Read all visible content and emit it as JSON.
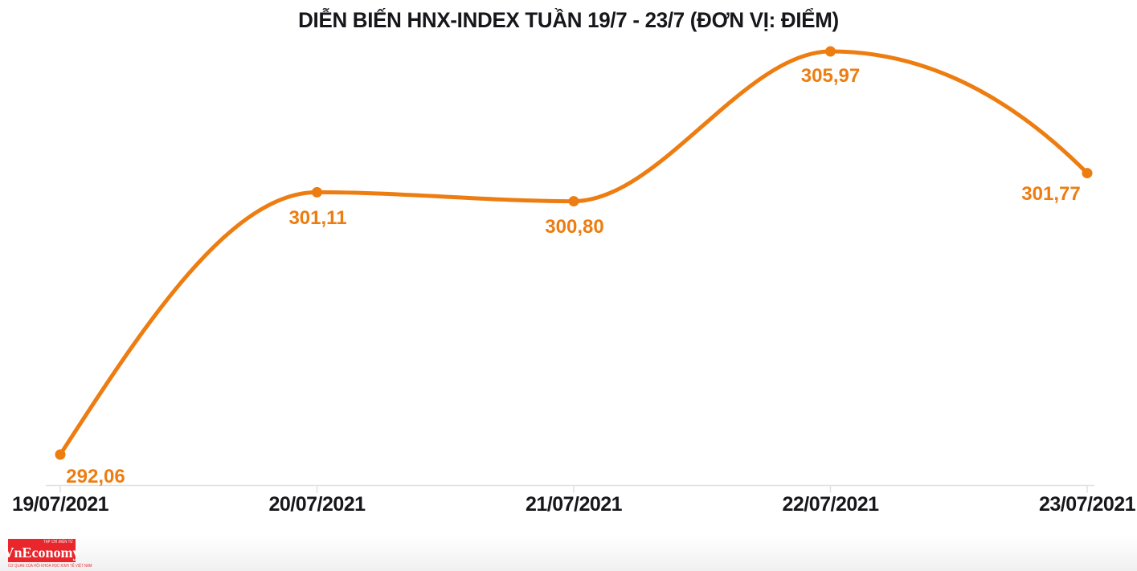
{
  "page": {
    "background_color": "#ffffff"
  },
  "chart_data": {
    "type": "line",
    "title": "DIỄN BIẾN HNX-INDEX TUẦN 19/7 - 23/7 (ĐƠN VỊ: ĐIỂM)",
    "categories": [
      "19/07/2021",
      "20/07/2021",
      "21/07/2021",
      "22/07/2021",
      "23/07/2021"
    ],
    "values": [
      292.06,
      301.11,
      300.8,
      305.97,
      301.77
    ],
    "point_labels": [
      "292,06",
      "301,11",
      "300,80",
      "305,97",
      "301,77"
    ],
    "xlabel": "",
    "ylabel": "",
    "ylim": [
      291.0,
      306.5
    ],
    "grid": false,
    "legend": false,
    "y_axis_visible": false,
    "line_color": "#ed7d11",
    "marker_color": "#ed7d11",
    "label_color": "#ed7d11",
    "axis_color": "#e1e1e1",
    "text_color": "#17171b"
  },
  "logo": {
    "brand": "VnEconomy",
    "top_text": "TẠP CHÍ ĐIỆN TỬ",
    "tagline": "CƠ QUAN CỦA HỘI KHOA HỌC KINH TẾ VIỆT NAM",
    "bg_color": "#e8262c"
  }
}
